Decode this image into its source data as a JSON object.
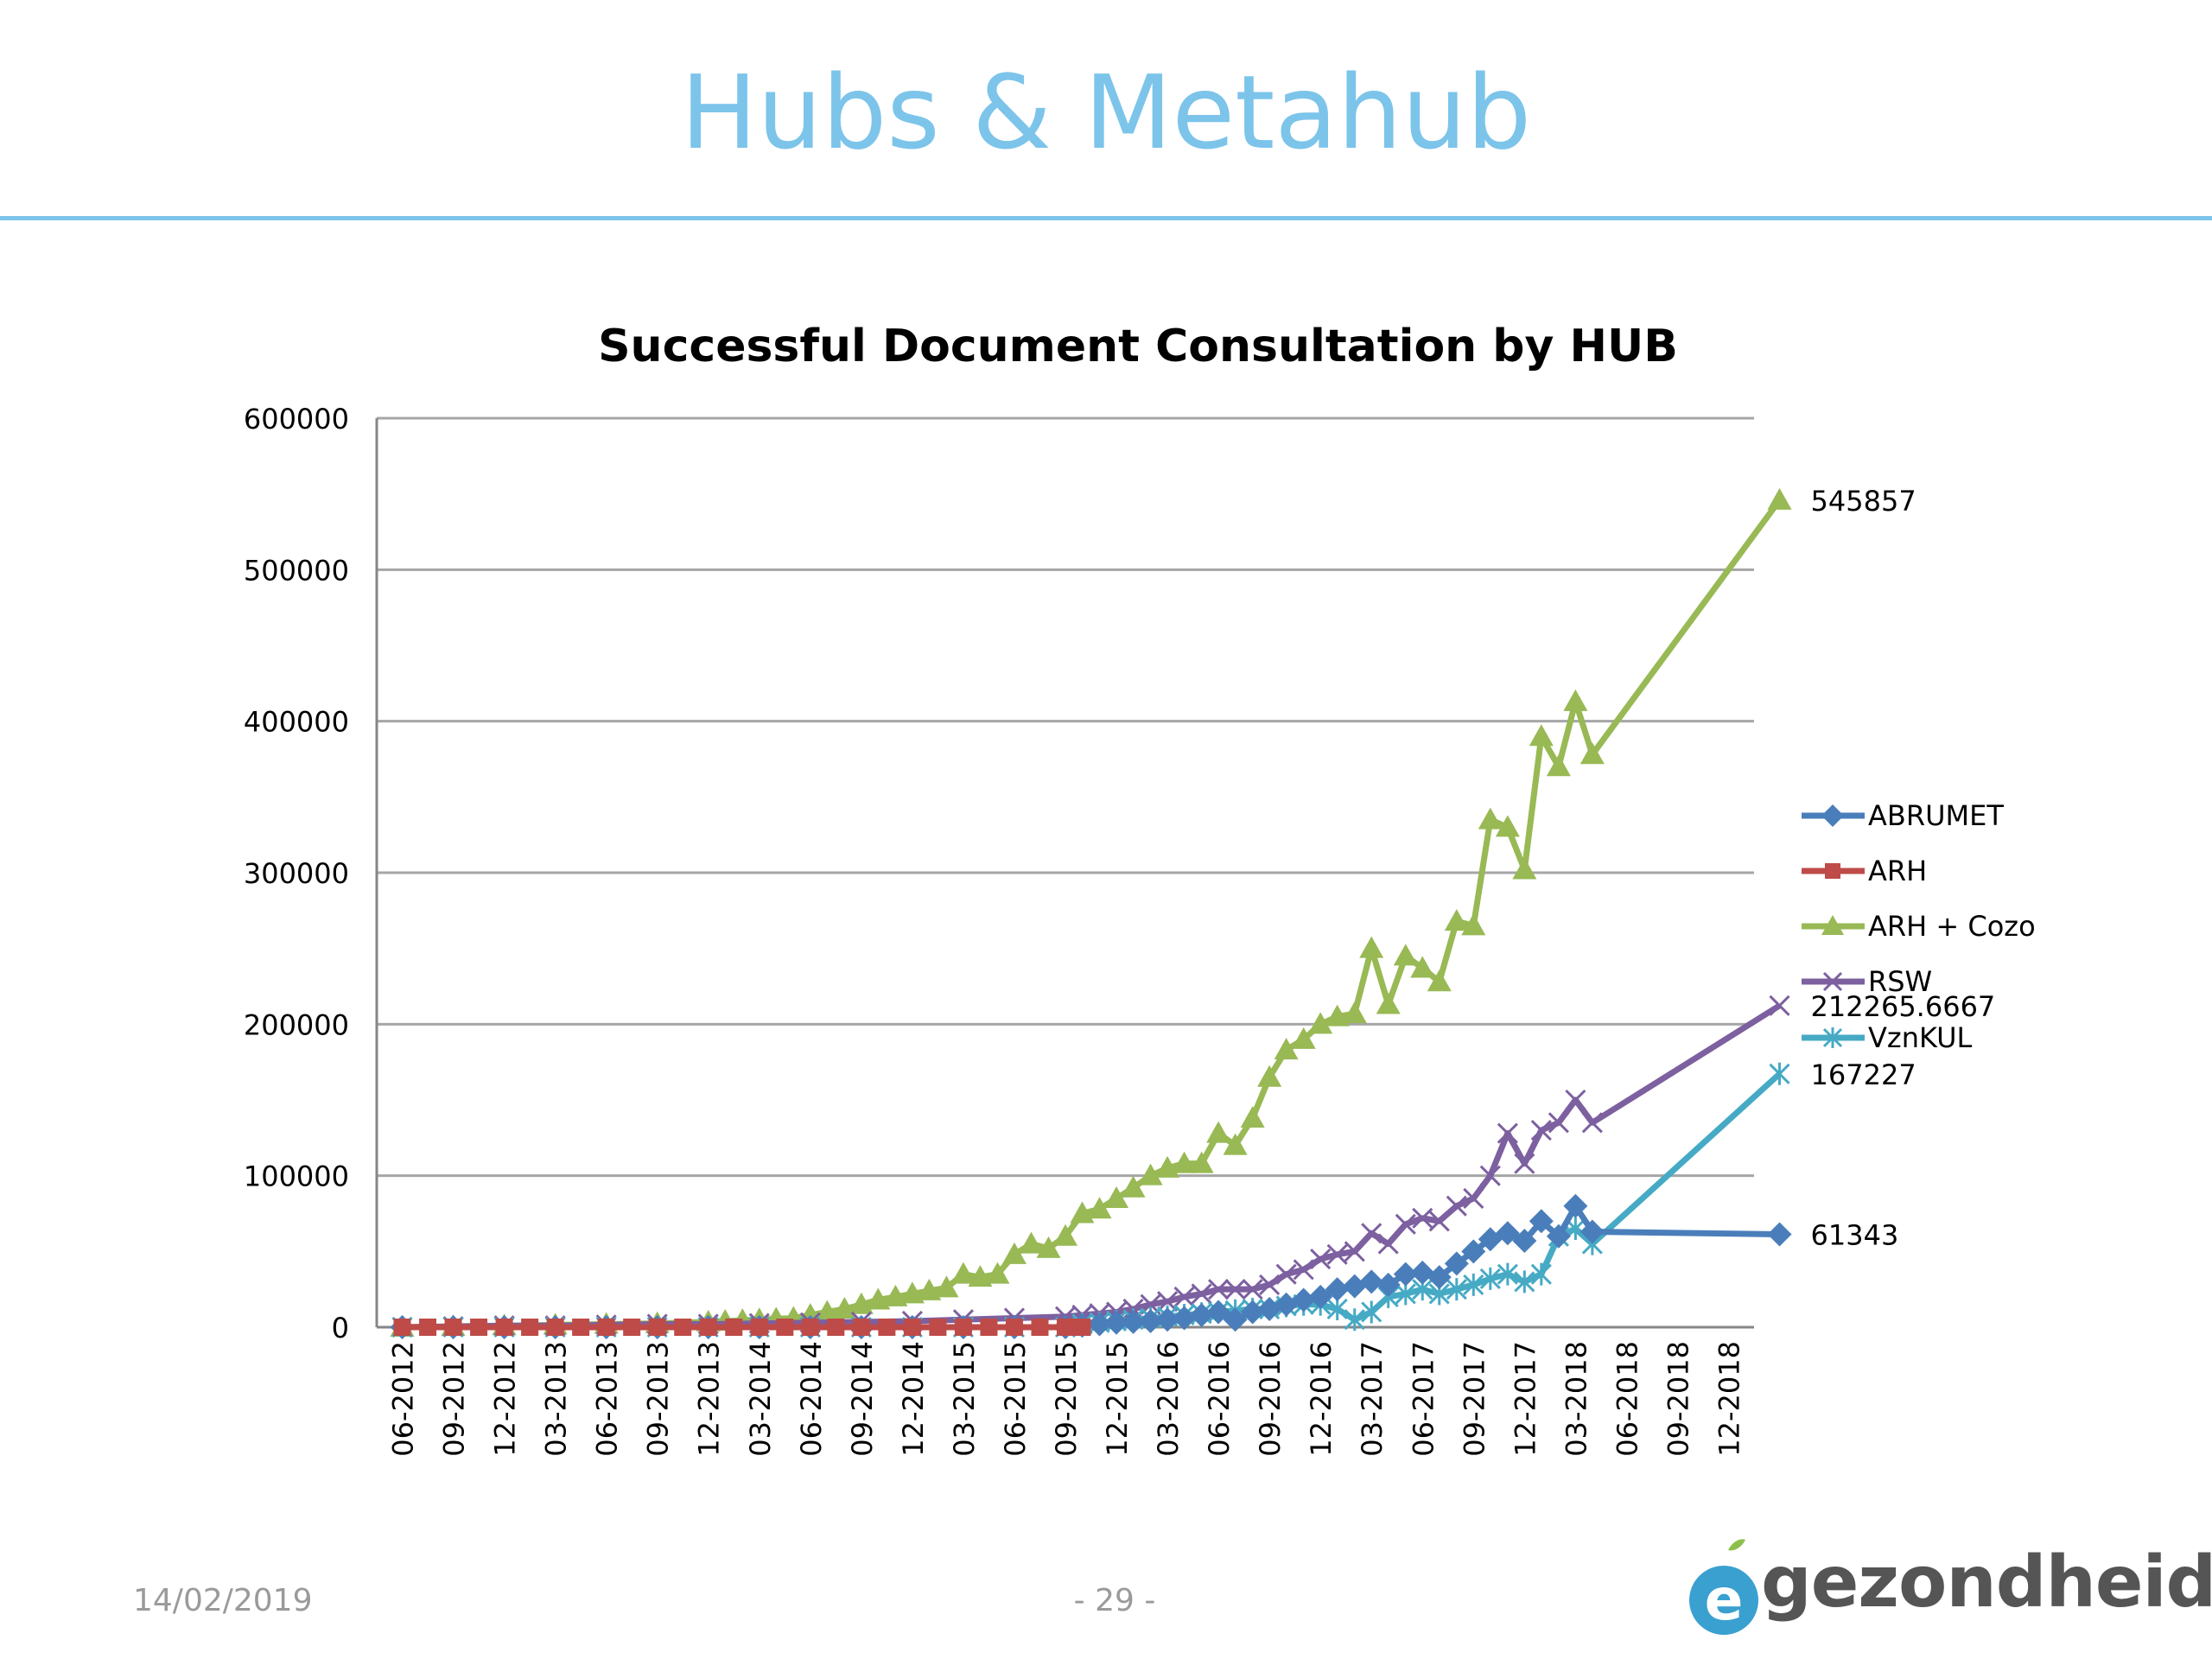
{
  "slide": {
    "title": "Hubs & Metahub",
    "date": "14/02/2019",
    "page": "- 29 -",
    "logo_text": "gezondheid",
    "logo_letter": "e"
  },
  "colors": {
    "title": "#7cc4ea",
    "ABRUMET": "#4a7ebb",
    "ARH": "#be4b48",
    "ARH + Cozo": "#98b954",
    "RSW": "#7d60a0",
    "VznKUL": "#46aac5"
  },
  "chart_data": {
    "type": "line",
    "title": "Successful Document Consultation by HUB",
    "xlabel": "",
    "ylabel": "",
    "ylim": [
      0,
      600000
    ],
    "yticks": [
      "0",
      "100000",
      "200000",
      "300000",
      "400000",
      "500000",
      "600000"
    ],
    "categories": [
      "06-2012",
      "09-2012",
      "12-2012",
      "03-2013",
      "06-2013",
      "09-2013",
      "12-2013",
      "03-2014",
      "06-2014",
      "09-2014",
      "12-2014",
      "03-2015",
      "06-2015",
      "09-2015",
      "12-2015",
      "03-2016",
      "06-2016",
      "09-2016",
      "12-2016",
      "03-2017",
      "06-2017",
      "09-2017",
      "12-2017",
      "03-2018",
      "06-2018",
      "09-2018",
      "12-2018"
    ],
    "grid": true,
    "legend_position": "right",
    "series": [
      {
        "name": "ABRUMET",
        "marker": "diamond",
        "points": [
          [
            0,
            0
          ],
          [
            1,
            0
          ],
          [
            2,
            0
          ],
          [
            3,
            0
          ],
          [
            4,
            0
          ],
          [
            5,
            0
          ],
          [
            6,
            0
          ],
          [
            7,
            0
          ],
          [
            8,
            0
          ],
          [
            9,
            0
          ],
          [
            10,
            0
          ],
          [
            11,
            0
          ],
          [
            12,
            0
          ],
          [
            13,
            0
          ],
          [
            13.33,
            1000
          ],
          [
            13.67,
            2000
          ],
          [
            14,
            3000
          ],
          [
            14.33,
            3500
          ],
          [
            14.67,
            4000
          ],
          [
            15,
            5000
          ],
          [
            15.33,
            6000
          ],
          [
            15.67,
            8000
          ],
          [
            16,
            10000
          ],
          [
            16.33,
            5000
          ],
          [
            16.67,
            10000
          ],
          [
            17,
            12000
          ],
          [
            17.33,
            15000
          ],
          [
            17.67,
            18000
          ],
          [
            18,
            20000
          ],
          [
            18.33,
            25000
          ],
          [
            18.67,
            27000
          ],
          [
            19,
            30000
          ],
          [
            19.33,
            28000
          ],
          [
            19.67,
            35000
          ],
          [
            20,
            36000
          ],
          [
            20.33,
            33000
          ],
          [
            20.67,
            42000
          ],
          [
            21,
            50000
          ],
          [
            21.33,
            58000
          ],
          [
            21.67,
            62000
          ],
          [
            22,
            57000
          ],
          [
            22.33,
            70000
          ],
          [
            22.67,
            60000
          ],
          [
            23,
            80000
          ],
          [
            23.33,
            63000
          ],
          [
            27,
            61343
          ]
        ],
        "end_label": "61343"
      },
      {
        "name": "ARH",
        "marker": "square",
        "points": [
          [
            0,
            0
          ],
          [
            0.5,
            0
          ],
          [
            1,
            0
          ],
          [
            1.5,
            0
          ],
          [
            2,
            0
          ],
          [
            2.5,
            0
          ],
          [
            3,
            0
          ],
          [
            3.5,
            0
          ],
          [
            4,
            0
          ],
          [
            4.5,
            0
          ],
          [
            5,
            0
          ],
          [
            5.5,
            0
          ],
          [
            6,
            0
          ],
          [
            6.5,
            0
          ],
          [
            7,
            0
          ],
          [
            7.5,
            0
          ],
          [
            8,
            0
          ],
          [
            8.5,
            0
          ],
          [
            9,
            0
          ],
          [
            9.5,
            0
          ],
          [
            10,
            0
          ],
          [
            10.5,
            0
          ],
          [
            11,
            0
          ],
          [
            11.5,
            0
          ],
          [
            12,
            0
          ],
          [
            12.5,
            0
          ],
          [
            13,
            0
          ],
          [
            13.33,
            0
          ]
        ]
      },
      {
        "name": "ARH + Cozo",
        "marker": "triangle",
        "points": [
          [
            0,
            0
          ],
          [
            1,
            500
          ],
          [
            2,
            1000
          ],
          [
            3,
            1500
          ],
          [
            4,
            2000
          ],
          [
            5,
            2500
          ],
          [
            6,
            3500
          ],
          [
            6.33,
            4000
          ],
          [
            6.67,
            4500
          ],
          [
            7,
            5000
          ],
          [
            7.33,
            5500
          ],
          [
            7.67,
            6000
          ],
          [
            8,
            8000
          ],
          [
            8.33,
            10000
          ],
          [
            8.67,
            12000
          ],
          [
            9,
            15000
          ],
          [
            9.33,
            18000
          ],
          [
            9.67,
            20000
          ],
          [
            10,
            22000
          ],
          [
            10.33,
            24000
          ],
          [
            10.67,
            26000
          ],
          [
            11,
            35000
          ],
          [
            11.33,
            33000
          ],
          [
            11.67,
            35000
          ],
          [
            12,
            48000
          ],
          [
            12.33,
            55000
          ],
          [
            12.67,
            52000
          ],
          [
            13,
            60000
          ],
          [
            13.33,
            75000
          ],
          [
            13.67,
            78000
          ],
          [
            14,
            85000
          ],
          [
            14.33,
            92000
          ],
          [
            14.67,
            100000
          ],
          [
            15,
            105000
          ],
          [
            15.33,
            108000
          ],
          [
            15.67,
            108000
          ],
          [
            16,
            128000
          ],
          [
            16.33,
            120000
          ],
          [
            16.67,
            138000
          ],
          [
            17,
            165000
          ],
          [
            17.33,
            183000
          ],
          [
            17.67,
            190000
          ],
          [
            18,
            200000
          ],
          [
            18.33,
            205000
          ],
          [
            18.67,
            207000
          ],
          [
            19,
            250000
          ],
          [
            19.33,
            213000
          ],
          [
            19.67,
            245000
          ],
          [
            20,
            237000
          ],
          [
            20.33,
            228000
          ],
          [
            20.67,
            268000
          ],
          [
            21,
            265000
          ],
          [
            21.33,
            335000
          ],
          [
            21.67,
            330000
          ],
          [
            22,
            302000
          ],
          [
            22.33,
            390000
          ],
          [
            22.67,
            370000
          ],
          [
            23,
            413000
          ],
          [
            23.33,
            378000
          ],
          [
            27,
            545857
          ]
        ],
        "end_label": "545857"
      },
      {
        "name": "RSW",
        "marker": "x",
        "points": [
          [
            0,
            0
          ],
          [
            1,
            500
          ],
          [
            2,
            1000
          ],
          [
            3,
            1000
          ],
          [
            4,
            1500
          ],
          [
            5,
            2000
          ],
          [
            6,
            2000
          ],
          [
            7,
            2500
          ],
          [
            8,
            3000
          ],
          [
            9,
            3500
          ],
          [
            10,
            4000
          ],
          [
            11,
            5000
          ],
          [
            12,
            6000
          ],
          [
            13,
            7000
          ],
          [
            13.33,
            8000
          ],
          [
            13.67,
            9000
          ],
          [
            14,
            10000
          ],
          [
            14.33,
            12000
          ],
          [
            14.67,
            15000
          ],
          [
            15,
            17000
          ],
          [
            15.33,
            20000
          ],
          [
            15.67,
            22000
          ],
          [
            16,
            25000
          ],
          [
            16.33,
            25000
          ],
          [
            16.67,
            25000
          ],
          [
            17,
            28000
          ],
          [
            17.33,
            35000
          ],
          [
            17.67,
            38000
          ],
          [
            18,
            45000
          ],
          [
            18.33,
            48000
          ],
          [
            18.67,
            50000
          ],
          [
            19,
            62000
          ],
          [
            19.33,
            55000
          ],
          [
            19.67,
            68000
          ],
          [
            20,
            72000
          ],
          [
            20.33,
            70000
          ],
          [
            20.67,
            80000
          ],
          [
            21,
            85000
          ],
          [
            21.33,
            100000
          ],
          [
            21.67,
            128000
          ],
          [
            22,
            108000
          ],
          [
            22.33,
            130000
          ],
          [
            22.67,
            135000
          ],
          [
            23,
            150000
          ],
          [
            23.33,
            135000
          ],
          [
            27,
            212265.6667
          ]
        ],
        "end_label": "212265.6667"
      },
      {
        "name": "VznKUL",
        "marker": "star",
        "points": [
          [
            0,
            0
          ],
          [
            1,
            0
          ],
          [
            2,
            0
          ],
          [
            3,
            0
          ],
          [
            4,
            0
          ],
          [
            5,
            0
          ],
          [
            6,
            0
          ],
          [
            7,
            0
          ],
          [
            8,
            0
          ],
          [
            9,
            0
          ],
          [
            10,
            0
          ],
          [
            11,
            0
          ],
          [
            12,
            0
          ],
          [
            13,
            0
          ],
          [
            13.33,
            2000
          ],
          [
            13.67,
            3000
          ],
          [
            14,
            4000
          ],
          [
            14.33,
            5000
          ],
          [
            14.67,
            6000
          ],
          [
            15,
            7000
          ],
          [
            15.33,
            8000
          ],
          [
            15.67,
            9000
          ],
          [
            16,
            10000
          ],
          [
            16.33,
            11000
          ],
          [
            16.67,
            12000
          ],
          [
            17,
            12000
          ],
          [
            17.33,
            14000
          ],
          [
            17.67,
            15000
          ],
          [
            18,
            15000
          ],
          [
            18.33,
            12000
          ],
          [
            18.67,
            5000
          ],
          [
            19,
            10000
          ],
          [
            19.33,
            20000
          ],
          [
            19.67,
            22000
          ],
          [
            20,
            25000
          ],
          [
            20.33,
            22000
          ],
          [
            20.67,
            25000
          ],
          [
            21,
            28000
          ],
          [
            21.33,
            32000
          ],
          [
            21.67,
            35000
          ],
          [
            22,
            30000
          ],
          [
            22.33,
            35000
          ],
          [
            22.67,
            60000
          ],
          [
            23,
            65000
          ],
          [
            23.33,
            55000
          ],
          [
            27,
            167227
          ]
        ],
        "end_label": "167227"
      }
    ]
  }
}
